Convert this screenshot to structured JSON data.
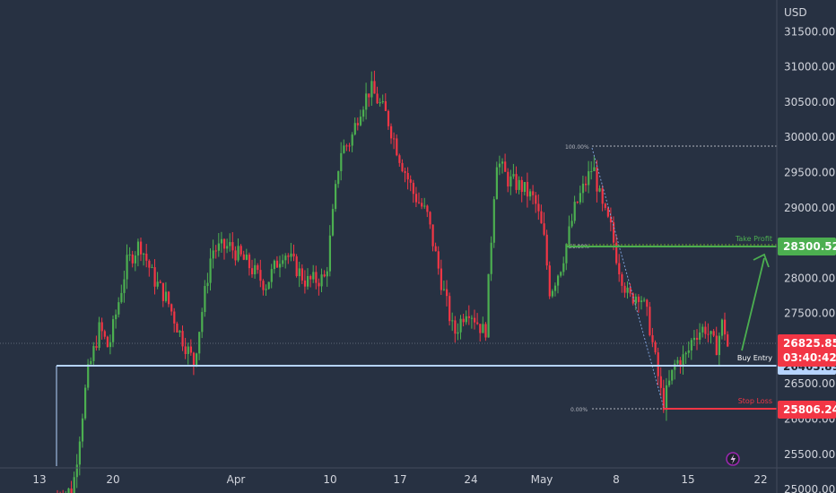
{
  "currency": "USD",
  "colors": {
    "background": "#273142",
    "bull": "#4caf50",
    "bear": "#f23645",
    "take_profit": "#4caf50",
    "entry": "#b6d4ff",
    "stop_loss": "#f23645",
    "fib": "#b2b5be"
  },
  "price_tags": {
    "take_profit": "28300.52",
    "last_price": "26825.85",
    "countdown": "03:40:42",
    "entry": "26463.89",
    "stop_loss": "25806.24"
  },
  "annotations": {
    "take_profit": "Take Profit",
    "buy_entry": "Buy Entry",
    "stop_loss": "Stop Loss"
  },
  "fib_labels": {
    "top": "100.00%",
    "mid": "61.80%",
    "bottom": "0.00%"
  },
  "icons": {
    "bottom_right": "lightning-icon"
  },
  "chart_data": {
    "type": "candlestick",
    "title": "",
    "ylabel": "USD",
    "ylim": [
      24950,
      31950
    ],
    "yticks": [
      "25000.00",
      "25500.00",
      "26000.00",
      "26500.00",
      "27000.00",
      "27500.00",
      "28000.00",
      "28500.00",
      "29000.00",
      "29500.00",
      "30000.00",
      "30500.00",
      "31000.00",
      "31500.00"
    ],
    "xticks": [
      "13",
      "20",
      "Apr",
      "10",
      "17",
      "24",
      "May",
      "8",
      "15",
      "22"
    ],
    "close_path": [
      [
        "Mar 14",
        24900
      ],
      [
        "Mar 16",
        25000
      ],
      [
        "Mar 17",
        26600
      ],
      [
        "Mar 18",
        27300
      ],
      [
        "Mar 19",
        27000
      ],
      [
        "Mar 21",
        28200
      ],
      [
        "Mar 22",
        28500
      ],
      [
        "Mar 23",
        28000
      ],
      [
        "Mar 25",
        27700
      ],
      [
        "Mar 28",
        27200
      ],
      [
        "Mar 29",
        26800
      ],
      [
        "Mar 30",
        28400
      ],
      [
        "Apr 1",
        28450
      ],
      [
        "Apr 3",
        28200
      ],
      [
        "Apr 5",
        27900
      ],
      [
        "Apr 6",
        28400
      ],
      [
        "Apr 8",
        27950
      ],
      [
        "Apr 10",
        28000
      ],
      [
        "Apr 11",
        29800
      ],
      [
        "Apr 12",
        29950
      ],
      [
        "Apr 13",
        30400
      ],
      [
        "Apr 14",
        30700
      ],
      [
        "Apr 16",
        30300
      ],
      [
        "Apr 17",
        29700
      ],
      [
        "Apr 18",
        29200
      ],
      [
        "Apr 19",
        28900
      ],
      [
        "Apr 21",
        28000
      ],
      [
        "Apr 22",
        27200
      ],
      [
        "Apr 24",
        27600
      ],
      [
        "Apr 25",
        27200
      ],
      [
        "Apr 26",
        29700
      ],
      [
        "Apr 27",
        29400
      ],
      [
        "Apr 28",
        29300
      ],
      [
        "Apr 30",
        29100
      ],
      [
        "May 1",
        28600
      ],
      [
        "May 2",
        27800
      ],
      [
        "May 3",
        28200
      ],
      [
        "May 4",
        29000
      ],
      [
        "May 5",
        29600
      ],
      [
        "May 6",
        29000
      ],
      [
        "May 7",
        28700
      ],
      [
        "May 8",
        28200
      ],
      [
        "May 9",
        27700
      ],
      [
        "May 10",
        27800
      ],
      [
        "May 11",
        27400
      ],
      [
        "May 12",
        26200
      ],
      [
        "May 13",
        26800
      ],
      [
        "May 14",
        26900
      ],
      [
        "May 15",
        27200
      ],
      [
        "May 16",
        27300
      ],
      [
        "May 17",
        27000
      ],
      [
        "May 18",
        27400
      ],
      [
        "May 19",
        26825.85
      ]
    ]
  }
}
